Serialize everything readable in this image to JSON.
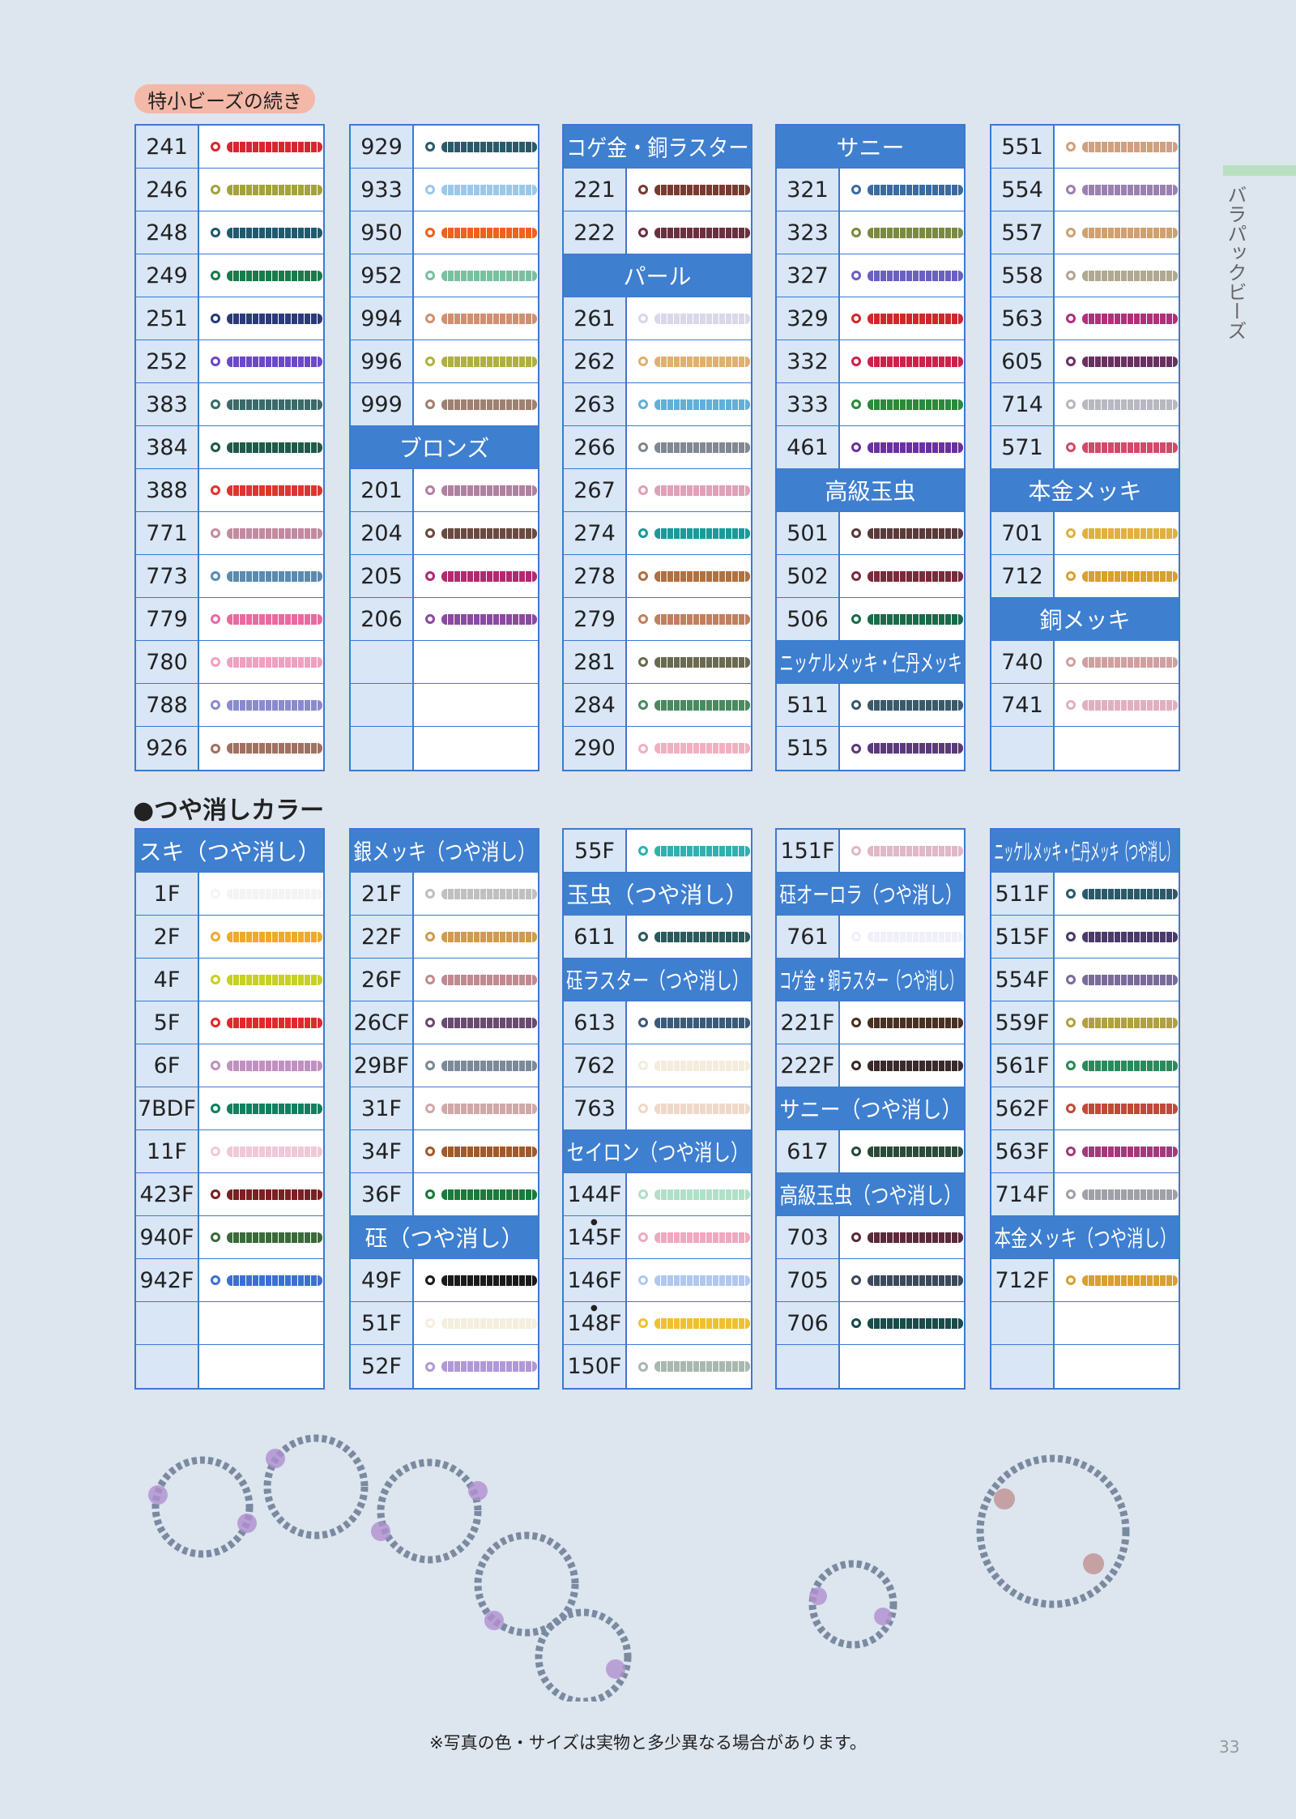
{
  "tag": "特小ビーズの続き",
  "side_label": "バラパックビーズ",
  "section2_title": "●つや消しカラー",
  "footnote": "※写真の色・サイズは実物と多少異なる場合があります。",
  "page_number": "33",
  "top_columns": [
    [
      {
        "c": "241",
        "col": "#d8262e"
      },
      {
        "c": "246",
        "col": "#a3a33a"
      },
      {
        "c": "248",
        "col": "#1f5a6e"
      },
      {
        "c": "249",
        "col": "#1a7a4a"
      },
      {
        "c": "251",
        "col": "#2a3a7a"
      },
      {
        "c": "252",
        "col": "#6a48c8"
      },
      {
        "c": "383",
        "col": "#3a6a6a"
      },
      {
        "c": "384",
        "col": "#1e5a4a"
      },
      {
        "c": "388",
        "col": "#e0342c"
      },
      {
        "c": "771",
        "col": "#c28aa0"
      },
      {
        "c": "773",
        "col": "#5a8ab0"
      },
      {
        "c": "779",
        "col": "#e86aa0"
      },
      {
        "c": "780",
        "col": "#f0a0c0"
      },
      {
        "c": "788",
        "col": "#8a8ad0"
      },
      {
        "c": "926",
        "col": "#a07060"
      }
    ],
    [
      {
        "c": "929",
        "col": "#2a5a6a"
      },
      {
        "c": "933",
        "col": "#9ac8e8"
      },
      {
        "c": "950",
        "col": "#f06020"
      },
      {
        "c": "952",
        "col": "#7ac0a0"
      },
      {
        "c": "994",
        "col": "#d09070"
      },
      {
        "c": "996",
        "col": "#b0b040"
      },
      {
        "c": "999",
        "col": "#a08070"
      },
      {
        "h": "ブロンズ"
      },
      {
        "c": "201",
        "col": "#b080a0"
      },
      {
        "c": "204",
        "col": "#6a4a40"
      },
      {
        "c": "205",
        "col": "#b02a70"
      },
      {
        "c": "206",
        "col": "#8a4aa0"
      },
      null,
      null,
      null
    ],
    [
      {
        "h": "コゲ金・銅ラスター"
      },
      {
        "c": "221",
        "col": "#7a3a30"
      },
      {
        "c": "222",
        "col": "#6a3040"
      },
      {
        "h": "パール"
      },
      {
        "c": "261",
        "col": "#d8d8e8"
      },
      {
        "c": "262",
        "col": "#e0b070"
      },
      {
        "c": "263",
        "col": "#60b0d8"
      },
      {
        "c": "266",
        "col": "#808890"
      },
      {
        "c": "267",
        "col": "#e0a0b8"
      },
      {
        "c": "274",
        "col": "#1a9a9a"
      },
      {
        "c": "278",
        "col": "#b07040"
      },
      {
        "c": "279",
        "col": "#c08060"
      },
      {
        "c": "281",
        "col": "#6a6a50"
      },
      {
        "c": "284",
        "col": "#4a8a60"
      },
      {
        "c": "290",
        "col": "#f0b0c0"
      }
    ],
    [
      {
        "h": "サニー"
      },
      {
        "c": "321",
        "col": "#3a6aa0"
      },
      {
        "c": "323",
        "col": "#7a8a40"
      },
      {
        "c": "327",
        "col": "#6a60c0"
      },
      {
        "c": "329",
        "col": "#d0282a"
      },
      {
        "c": "332",
        "col": "#d0204a"
      },
      {
        "c": "333",
        "col": "#2a8a3a"
      },
      {
        "c": "461",
        "col": "#6a30a0"
      },
      {
        "h": "高級玉虫"
      },
      {
        "c": "501",
        "col": "#5a3a3a"
      },
      {
        "c": "502",
        "col": "#7a2a3a"
      },
      {
        "c": "506",
        "col": "#1a6a4a"
      },
      {
        "h": "ニッケルメッキ・仁丹メッキ"
      },
      {
        "c": "511",
        "col": "#3a5a6a"
      },
      {
        "c": "515",
        "col": "#5a3a7a"
      }
    ],
    [
      {
        "c": "551",
        "col": "#d0a080"
      },
      {
        "c": "554",
        "col": "#9a80b0"
      },
      {
        "c": "557",
        "col": "#d0a070"
      },
      {
        "c": "558",
        "col": "#b0a890"
      },
      {
        "c": "563",
        "col": "#b0307a"
      },
      {
        "c": "605",
        "col": "#6a3060"
      },
      {
        "c": "714",
        "col": "#b8b8c0"
      },
      {
        "c": "571",
        "col": "#d04a6a"
      },
      {
        "h": "本金メッキ"
      },
      {
        "c": "701",
        "col": "#e0b040"
      },
      {
        "c": "712",
        "col": "#d8a030"
      },
      {
        "h": "銅メッキ"
      },
      {
        "c": "740",
        "col": "#d0a0a0"
      },
      {
        "c": "741",
        "col": "#e0b0c0"
      },
      null
    ]
  ],
  "bottom_columns": [
    [
      {
        "h": "スキ（つや消し）"
      },
      {
        "c": "1F",
        "col": "#f4f4f6"
      },
      {
        "c": "2F",
        "col": "#f0a830"
      },
      {
        "c": "4F",
        "col": "#c8d020"
      },
      {
        "c": "5F",
        "col": "#e02a2a"
      },
      {
        "c": "6F",
        "col": "#c090c0"
      },
      {
        "c": "7BDF",
        "col": "#108060"
      },
      {
        "c": "11F",
        "col": "#f0c8d8"
      },
      {
        "c": "423F",
        "col": "#7a2020"
      },
      {
        "c": "940F",
        "col": "#3a6a3a"
      },
      {
        "c": "942F",
        "col": "#3a70d0"
      },
      null,
      null
    ],
    [
      {
        "h": "銀メッキ（つや消し）"
      },
      {
        "c": "21F",
        "col": "#c0c0c0"
      },
      {
        "c": "22F",
        "col": "#d09a50"
      },
      {
        "c": "26F",
        "col": "#c08a90"
      },
      {
        "c": "26CF",
        "col": "#6a4a70"
      },
      {
        "c": "29BF",
        "col": "#7a8a9a"
      },
      {
        "c": "31F",
        "col": "#d0a8a8"
      },
      {
        "c": "34F",
        "col": "#a05a2a"
      },
      {
        "c": "36F",
        "col": "#1a7a3a"
      },
      {
        "h": "砡（つや消し）"
      },
      {
        "c": "49F",
        "col": "#1a1a1a"
      },
      {
        "c": "51F",
        "col": "#f4eedc"
      },
      {
        "c": "52F",
        "col": "#b098d8"
      }
    ],
    [
      {
        "c": "55F",
        "col": "#30b0b0"
      },
      {
        "h": "玉虫（つや消し）"
      },
      {
        "c": "611",
        "col": "#2a5a5a"
      },
      {
        "h": "砡ラスター（つや消し）"
      },
      {
        "c": "613",
        "col": "#3a5a7a"
      },
      {
        "c": "762",
        "col": "#f4ecdc"
      },
      {
        "c": "763",
        "col": "#f0d8c8"
      },
      {
        "h": "セイロン（つや消し）"
      },
      {
        "c": "144F",
        "col": "#b0e0c8"
      },
      {
        "c": "145F",
        "col": "#f0a8c0",
        "mark": "●"
      },
      {
        "c": "146F",
        "col": "#b0c8f0"
      },
      {
        "c": "148F",
        "col": "#f0c030",
        "mark": "●"
      },
      {
        "c": "150F",
        "col": "#a8b8b0"
      }
    ],
    [
      {
        "c": "151F",
        "col": "#e0b8c8"
      },
      {
        "h": "砡オーロラ（つや消し）"
      },
      {
        "c": "761",
        "col": "#f0f0f8"
      },
      {
        "h": "コゲ金・銅ラスター（つや消し）"
      },
      {
        "c": "221F",
        "col": "#4a3020"
      },
      {
        "c": "222F",
        "col": "#3a2a2a"
      },
      {
        "h": "サニー（つや消し）"
      },
      {
        "c": "617",
        "col": "#2a4a3a"
      },
      {
        "h": "高級玉虫（つや消し）"
      },
      {
        "c": "703",
        "col": "#5a2a3a"
      },
      {
        "c": "705",
        "col": "#3a4a5a"
      },
      {
        "c": "706",
        "col": "#1a4a4a"
      },
      null
    ],
    [
      {
        "h": "ニッケルメッキ・仁丹メッキ（つや消し）"
      },
      {
        "c": "511F",
        "col": "#2a5a6a"
      },
      {
        "c": "515F",
        "col": "#4a3a6a"
      },
      {
        "c": "554F",
        "col": "#7a6a9a"
      },
      {
        "c": "559F",
        "col": "#b0a040"
      },
      {
        "c": "561F",
        "col": "#2a8a5a"
      },
      {
        "c": "562F",
        "col": "#c04a3a"
      },
      {
        "c": "563F",
        "col": "#a03a7a"
      },
      {
        "c": "714F",
        "col": "#a0a0a8"
      },
      {
        "h": "本金メッキ（つや消し）"
      },
      {
        "c": "712F",
        "col": "#d8a030"
      },
      null,
      null
    ]
  ]
}
